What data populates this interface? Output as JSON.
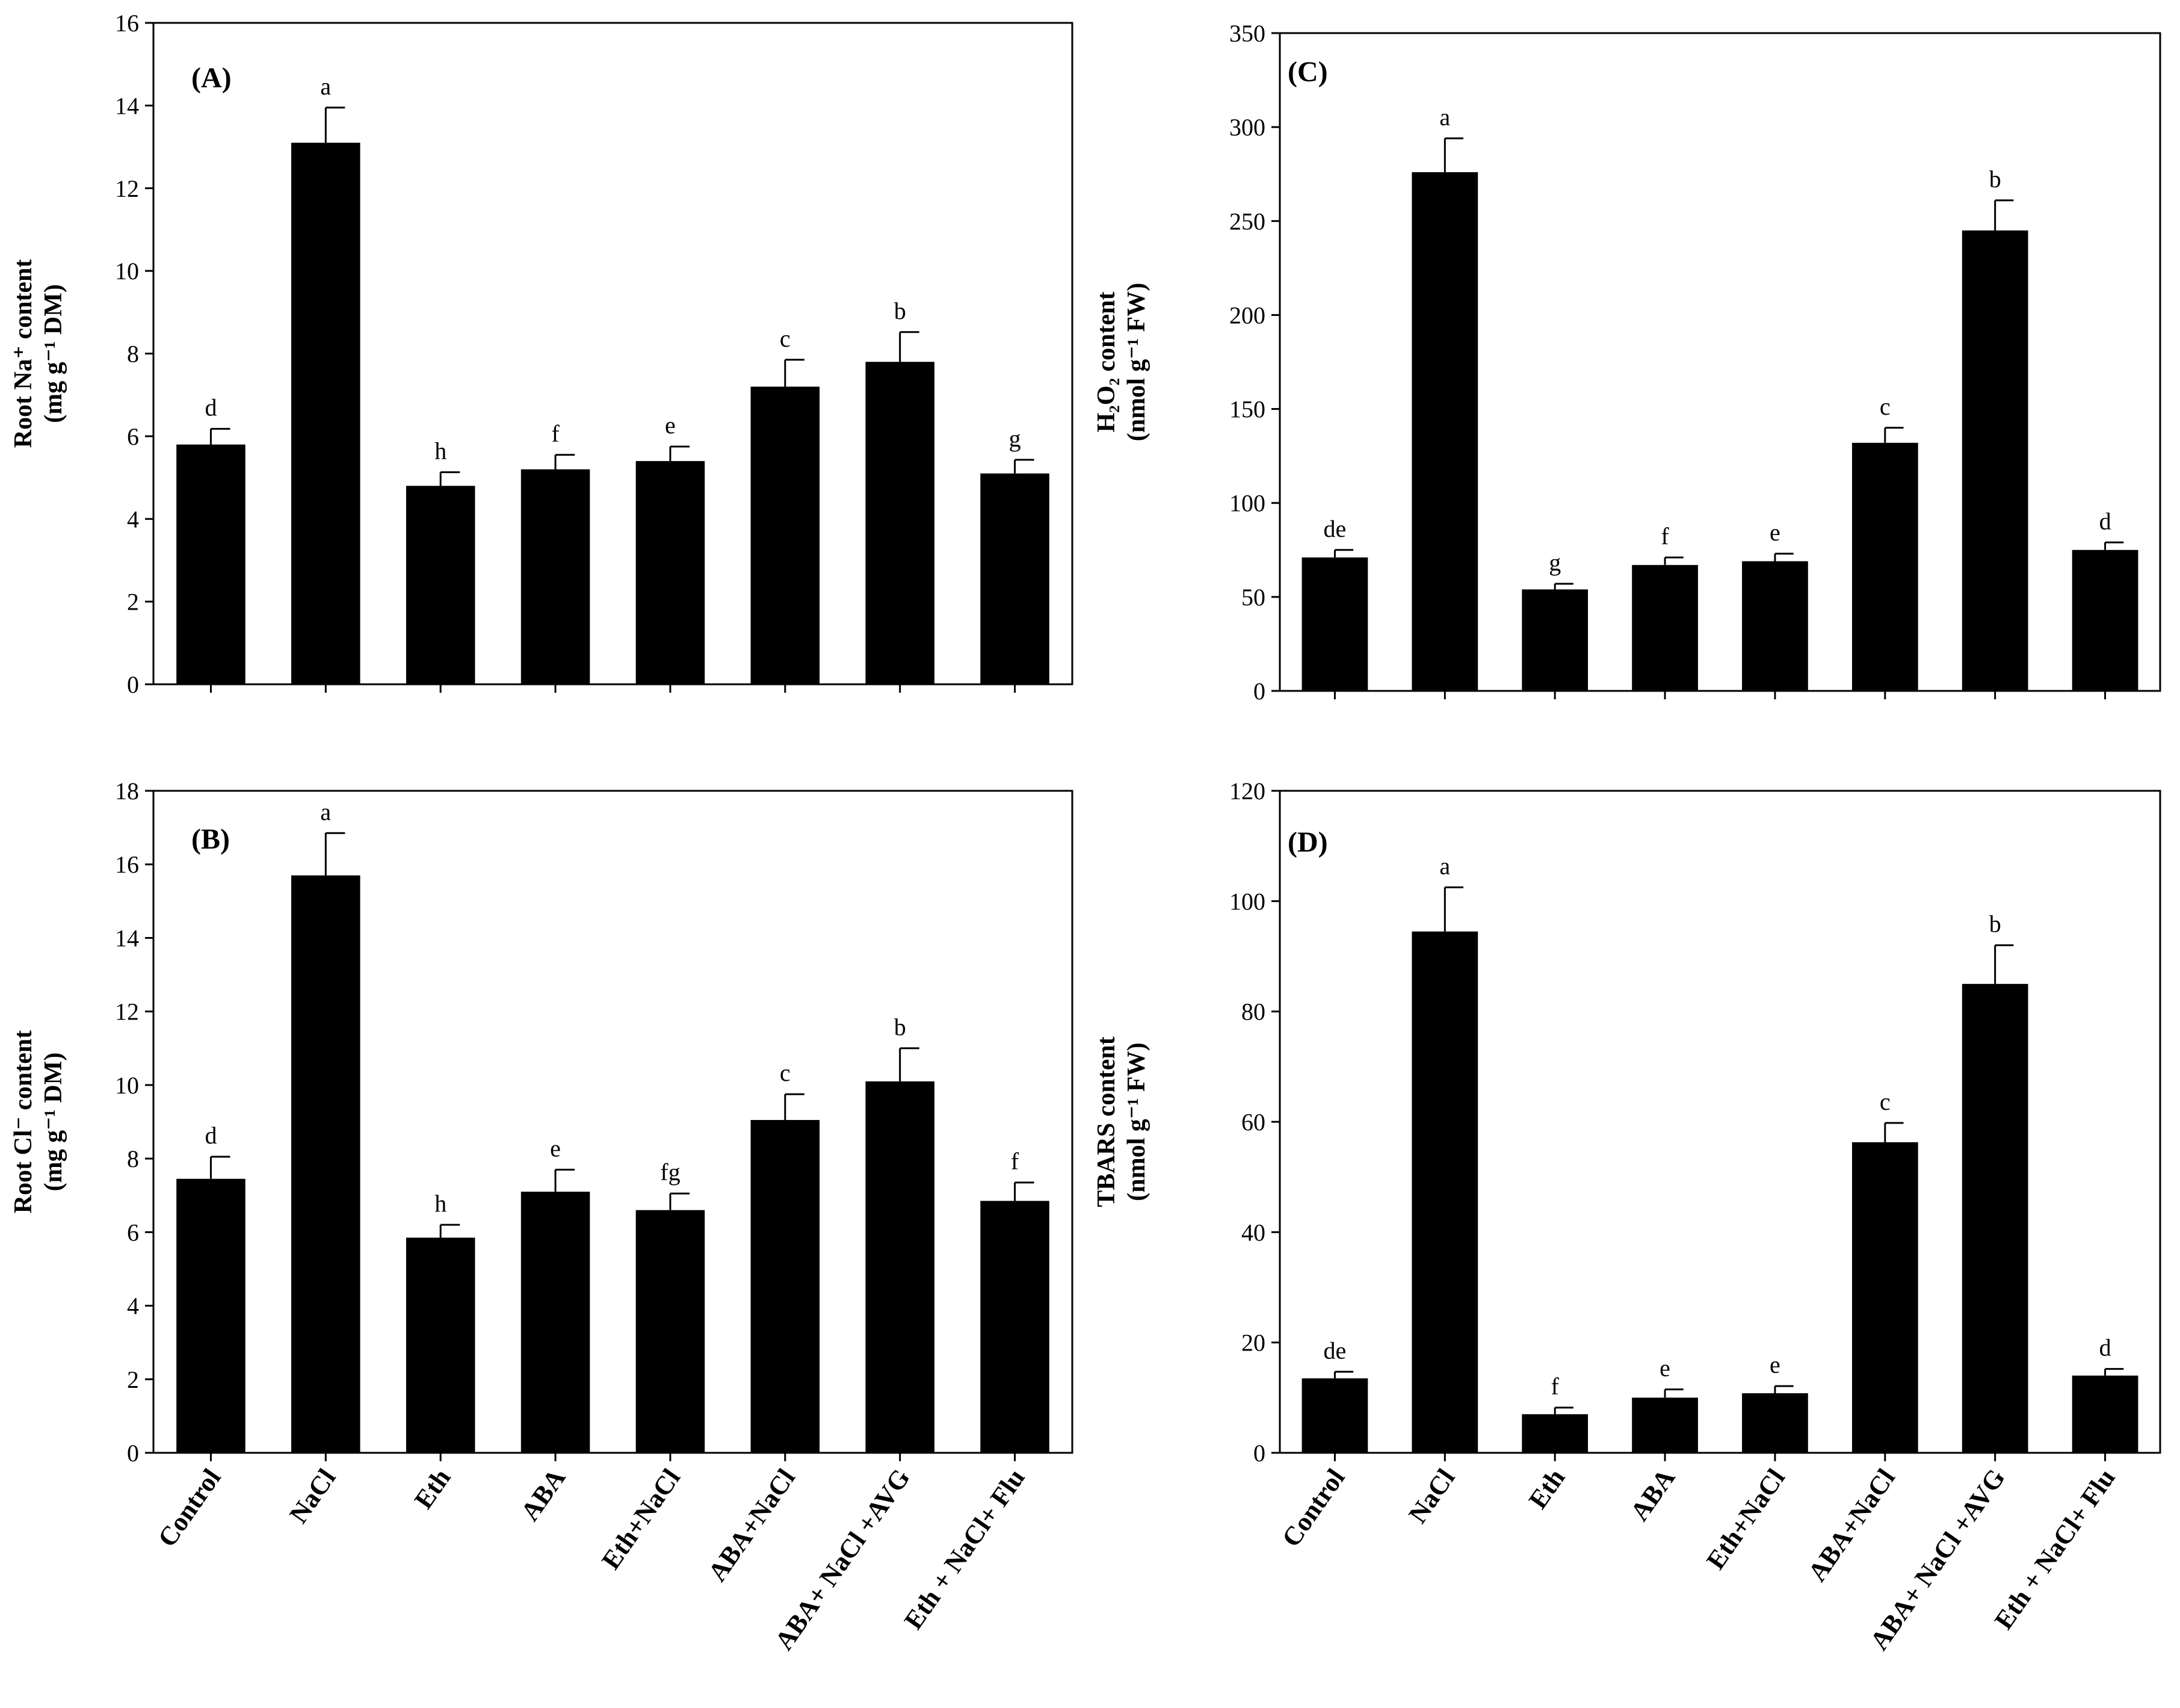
{
  "categories": [
    "Control",
    "NaCl",
    "Eth",
    "ABA",
    "Eth+NaCl",
    "ABA+NaCl",
    "ABA+ NaCl +AVG",
    "Eth + NaCl+ Flu"
  ],
  "chart_data": [
    {
      "type": "bar",
      "panel": "(A)",
      "ylabel_line1": "Root Na⁺ content",
      "ylabel_line2": "(mg g⁻¹ DM)",
      "ylim": [
        0,
        16
      ],
      "yticks": [
        0,
        2,
        4,
        6,
        8,
        10,
        12,
        14,
        16
      ],
      "values": [
        5.8,
        13.1,
        4.8,
        5.2,
        5.4,
        7.2,
        7.8,
        5.1
      ],
      "errors": [
        0.38,
        0.85,
        0.33,
        0.35,
        0.35,
        0.65,
        0.72,
        0.33
      ],
      "letters": [
        "d",
        "a",
        "h",
        "f",
        "e",
        "c",
        "b",
        "g"
      ],
      "show_categories": false
    },
    {
      "type": "bar",
      "panel": "(B)",
      "ylabel_line1": "Root Cl⁻ content",
      "ylabel_line2": "(mg g⁻¹ DM)",
      "ylim": [
        0,
        18
      ],
      "yticks": [
        0,
        2,
        4,
        6,
        8,
        10,
        12,
        14,
        16,
        18
      ],
      "values": [
        7.45,
        15.7,
        5.85,
        7.1,
        6.6,
        9.05,
        10.1,
        6.85
      ],
      "errors": [
        0.6,
        1.15,
        0.35,
        0.6,
        0.45,
        0.7,
        0.9,
        0.5
      ],
      "letters": [
        "d",
        "a",
        "h",
        "e",
        "fg",
        "c",
        "b",
        "f"
      ],
      "show_categories": true
    },
    {
      "type": "bar",
      "panel": "(C)",
      "ylabel_line1": "H₂O₂ content",
      "ylabel_line2": "(nmol g⁻¹ FW)",
      "ylim": [
        0,
        350
      ],
      "yticks": [
        0,
        50,
        100,
        150,
        200,
        250,
        300,
        350
      ],
      "values": [
        71,
        276,
        54,
        67,
        69,
        132,
        245,
        75
      ],
      "errors": [
        4,
        18,
        3,
        4,
        4,
        8,
        16,
        4
      ],
      "letters": [
        "de",
        "a",
        "g",
        "f",
        "e",
        "c",
        "b",
        "d"
      ],
      "show_categories": false
    },
    {
      "type": "bar",
      "panel": "(D)",
      "ylabel_line1": "TBARS content",
      "ylabel_line2": "(nmol g⁻¹ FW)",
      "ylim": [
        0,
        120
      ],
      "yticks": [
        0,
        20,
        40,
        60,
        80,
        100,
        120
      ],
      "values": [
        13.5,
        94.5,
        7,
        10,
        10.8,
        56.3,
        85,
        14
      ],
      "errors": [
        1.2,
        8,
        1.2,
        1.5,
        1.3,
        3.5,
        7,
        1.2
      ],
      "letters": [
        "de",
        "a",
        "f",
        "e",
        "e",
        "c",
        "b",
        "d"
      ],
      "show_categories": true
    }
  ]
}
